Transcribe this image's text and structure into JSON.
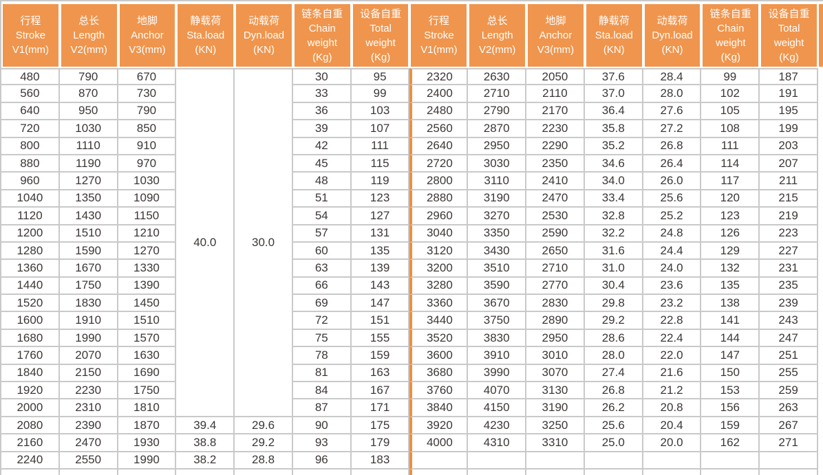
{
  "colors": {
    "header_orange": "#f0954d",
    "divider_orange": "#ef8e3b",
    "grid_line_grey": "#c9c9c9",
    "text_dark": "#3c3735",
    "header_text": "#ffffff",
    "background": "#ffffff"
  },
  "table": {
    "header_columns": [
      "行程\nStroke\nV1(mm)",
      "总长\nLength\nV2(mm)",
      "地脚\nAnchor\nV3(mm)",
      "静载荷\nSta.load\n(KN)",
      "动载荷\nDyn.load\n(KN)",
      "链条自重\nChain\nweight\n(Kg)",
      "设备自重\nTotal\nweight\n(Kg)"
    ],
    "merged_cells": [
      {
        "group": "left",
        "col": 3,
        "row_start": 0,
        "row_span": 20,
        "value": "40.0"
      },
      {
        "group": "left",
        "col": 4,
        "row_start": 0,
        "row_span": 20,
        "value": "30.0"
      }
    ],
    "left_rows": [
      [
        480,
        790,
        670,
        null,
        null,
        30,
        95
      ],
      [
        560,
        870,
        730,
        null,
        null,
        33,
        99
      ],
      [
        640,
        950,
        790,
        null,
        null,
        36,
        103
      ],
      [
        720,
        1030,
        850,
        null,
        null,
        39,
        107
      ],
      [
        800,
        1110,
        910,
        null,
        null,
        42,
        111
      ],
      [
        880,
        1190,
        970,
        null,
        null,
        45,
        115
      ],
      [
        960,
        1270,
        1030,
        null,
        null,
        48,
        119
      ],
      [
        1040,
        1350,
        1090,
        null,
        null,
        51,
        123
      ],
      [
        1120,
        1430,
        1150,
        null,
        null,
        54,
        127
      ],
      [
        1200,
        1510,
        1210,
        null,
        null,
        57,
        131
      ],
      [
        1280,
        1590,
        1270,
        null,
        null,
        60,
        135
      ],
      [
        1360,
        1670,
        1330,
        null,
        null,
        63,
        139
      ],
      [
        1440,
        1750,
        1390,
        null,
        null,
        66,
        143
      ],
      [
        1520,
        1830,
        1450,
        null,
        null,
        69,
        147
      ],
      [
        1600,
        1910,
        1510,
        null,
        null,
        72,
        151
      ],
      [
        1680,
        1990,
        1570,
        null,
        null,
        75,
        155
      ],
      [
        1760,
        2070,
        1630,
        null,
        null,
        78,
        159
      ],
      [
        1840,
        2150,
        1690,
        null,
        null,
        81,
        163
      ],
      [
        1920,
        2230,
        1750,
        null,
        null,
        84,
        167
      ],
      [
        2000,
        2310,
        1810,
        null,
        null,
        87,
        171
      ],
      [
        2080,
        2390,
        1870,
        "39.4",
        "29.6",
        90,
        175
      ],
      [
        2160,
        2470,
        1930,
        "38.8",
        "29.2",
        93,
        179
      ],
      [
        2240,
        2550,
        1990,
        "38.2",
        "28.8",
        96,
        183
      ],
      [
        "",
        "",
        "",
        "",
        "",
        "",
        ""
      ]
    ],
    "right_rows": [
      [
        2320,
        2630,
        2050,
        "37.6",
        "28.4",
        99,
        187
      ],
      [
        2400,
        2710,
        2110,
        "37.0",
        "28.0",
        102,
        191
      ],
      [
        2480,
        2790,
        2170,
        "36.4",
        "27.6",
        105,
        195
      ],
      [
        2560,
        2870,
        2230,
        "35.8",
        "27.2",
        108,
        199
      ],
      [
        2640,
        2950,
        2290,
        "35.2",
        "26.8",
        111,
        203
      ],
      [
        2720,
        3030,
        2350,
        "34.6",
        "26.4",
        114,
        207
      ],
      [
        2800,
        3110,
        2410,
        "34.0",
        "26.0",
        117,
        211
      ],
      [
        2880,
        3190,
        2470,
        "33.4",
        "25.6",
        120,
        215
      ],
      [
        2960,
        3270,
        2530,
        "32.8",
        "25.2",
        123,
        219
      ],
      [
        3040,
        3350,
        2590,
        "32.2",
        "24.8",
        126,
        223
      ],
      [
        3120,
        3430,
        2650,
        "31.6",
        "24.4",
        129,
        227
      ],
      [
        3200,
        3510,
        2710,
        "31.0",
        "24.0",
        132,
        231
      ],
      [
        3280,
        3590,
        2770,
        "30.4",
        "23.6",
        135,
        235
      ],
      [
        3360,
        3670,
        2830,
        "29.8",
        "23.2",
        138,
        239
      ],
      [
        3440,
        3750,
        2890,
        "29.2",
        "22.8",
        141,
        243
      ],
      [
        3520,
        3830,
        2950,
        "28.6",
        "22.4",
        144,
        247
      ],
      [
        3600,
        3910,
        3010,
        "28.0",
        "22.0",
        147,
        251
      ],
      [
        3680,
        3990,
        3070,
        "27.4",
        "21.6",
        150,
        255
      ],
      [
        3760,
        4070,
        3130,
        "26.8",
        "21.2",
        153,
        259
      ],
      [
        3840,
        4150,
        3190,
        "26.2",
        "20.8",
        156,
        263
      ],
      [
        3920,
        4230,
        3250,
        "25.6",
        "20.4",
        159,
        267
      ],
      [
        4000,
        4310,
        3310,
        "25.0",
        "20.0",
        162,
        271
      ],
      [
        "",
        "",
        "",
        "",
        "",
        "",
        ""
      ],
      [
        "",
        "",
        "",
        "",
        "",
        "",
        ""
      ]
    ]
  }
}
